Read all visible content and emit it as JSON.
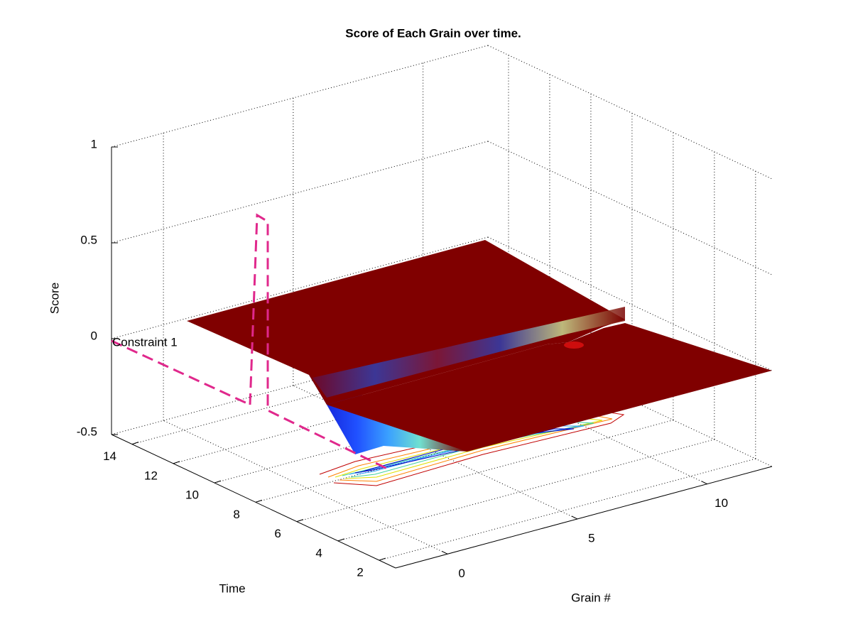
{
  "chart_data": {
    "type": "surface3d",
    "title": "Score of Each Grain over time.",
    "x_label": "Grain #",
    "y_label": "Time",
    "z_label": "Score",
    "annotation": "Constraint 1",
    "xlim": [
      -2,
      12.5
    ],
    "ylim": [
      1.2,
      15
    ],
    "zlim": [
      -0.5,
      1
    ],
    "xticks": [
      0,
      5,
      10
    ],
    "yticks": [
      2,
      4,
      6,
      8,
      10,
      12,
      14
    ],
    "zticks": [
      -0.5,
      0,
      0.5,
      1
    ],
    "grid": true
  }
}
